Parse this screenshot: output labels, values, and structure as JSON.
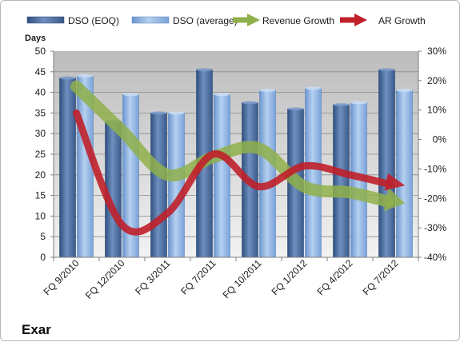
{
  "chart_data": {
    "type": "bar",
    "company": "Exar",
    "y_axis_title": "Days",
    "categories": [
      "FQ 9/2010",
      "FQ 12/2010",
      "FQ 3/2011",
      "FQ 7/2011",
      "FQ 10/2011",
      "FQ 1/2012",
      "FQ 4/2012",
      "FQ 7/2012"
    ],
    "ylim": [
      0,
      50
    ],
    "y_ticks": [
      "0",
      "5",
      "10",
      "15",
      "20",
      "25",
      "30",
      "35",
      "40",
      "45",
      "50"
    ],
    "y2lim": [
      -40,
      30
    ],
    "y2_ticks": [
      "-40%",
      "-30%",
      "-20%",
      "-10%",
      "0%",
      "10%",
      "20%",
      "30%"
    ],
    "grid": true,
    "legend_position": "top",
    "series": [
      {
        "name": "DSO (EOQ)",
        "kind": "bar",
        "axis": "left",
        "color": "#4f6fa0",
        "values": [
          43.5,
          33,
          35,
          45.5,
          37.5,
          36,
          37,
          45.5
        ]
      },
      {
        "name": "DSO (average)",
        "kind": "bar",
        "axis": "left",
        "color": "#8eb4e3",
        "values": [
          44,
          39.5,
          35,
          39.5,
          40.5,
          41,
          37.5,
          40.5
        ]
      },
      {
        "name": "Revenue Growth",
        "kind": "line",
        "axis": "right",
        "color": "#8fb04a",
        "values": [
          18,
          3,
          -12,
          -6,
          -3,
          -16,
          -18,
          -21
        ]
      },
      {
        "name": "AR Growth",
        "kind": "line",
        "axis": "right",
        "color": "#c0202a",
        "values": [
          9,
          -29,
          -25,
          -5,
          -16,
          -9,
          -12,
          -15
        ]
      }
    ]
  }
}
